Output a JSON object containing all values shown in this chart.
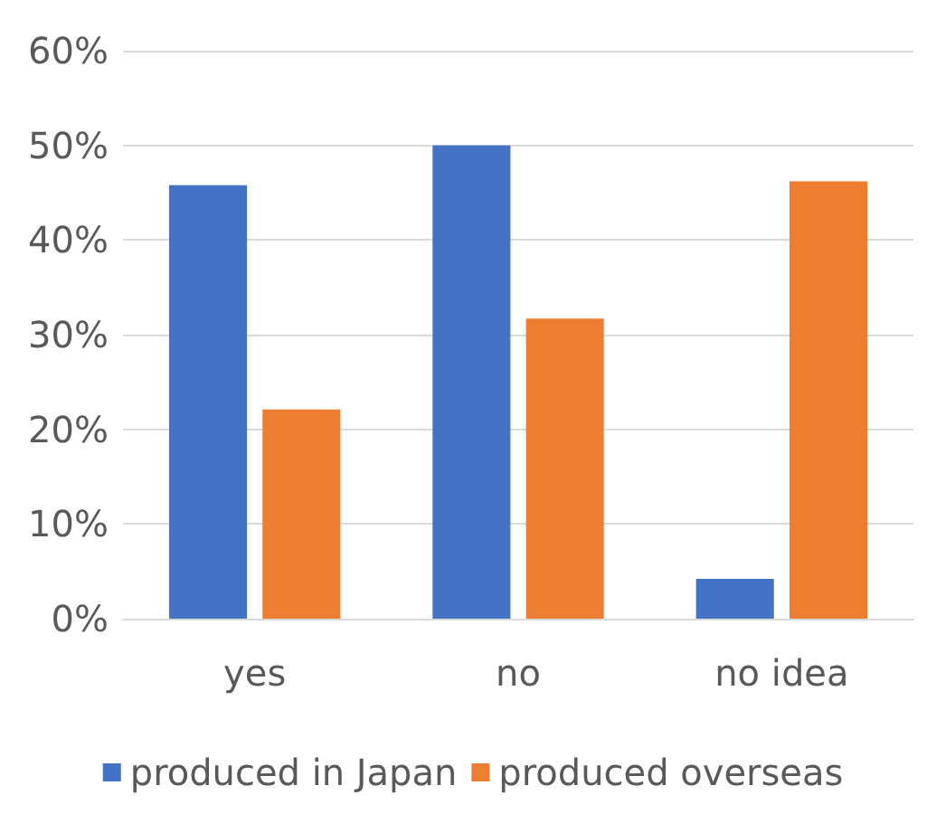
{
  "chart_data": {
    "type": "bar",
    "categories": [
      "yes",
      "no",
      "no idea"
    ],
    "series": [
      {
        "name": "produced in Japan",
        "color": "#4472c4",
        "values": [
          45.8,
          50,
          4.2
        ]
      },
      {
        "name": "produced overseas",
        "color": "#ed7d31",
        "values": [
          22.1,
          31.7,
          46.2
        ]
      }
    ],
    "ylim": [
      0,
      60
    ],
    "yticks": [
      {
        "value": 0,
        "label": "0%"
      },
      {
        "value": 10,
        "label": "10%"
      },
      {
        "value": 20,
        "label": "20%"
      },
      {
        "value": 30,
        "label": "30%"
      },
      {
        "value": 40,
        "label": "40%"
      },
      {
        "value": 50,
        "label": "50%"
      },
      {
        "value": 60,
        "label": "60%"
      }
    ],
    "grid": "y",
    "legend": "bottom"
  }
}
